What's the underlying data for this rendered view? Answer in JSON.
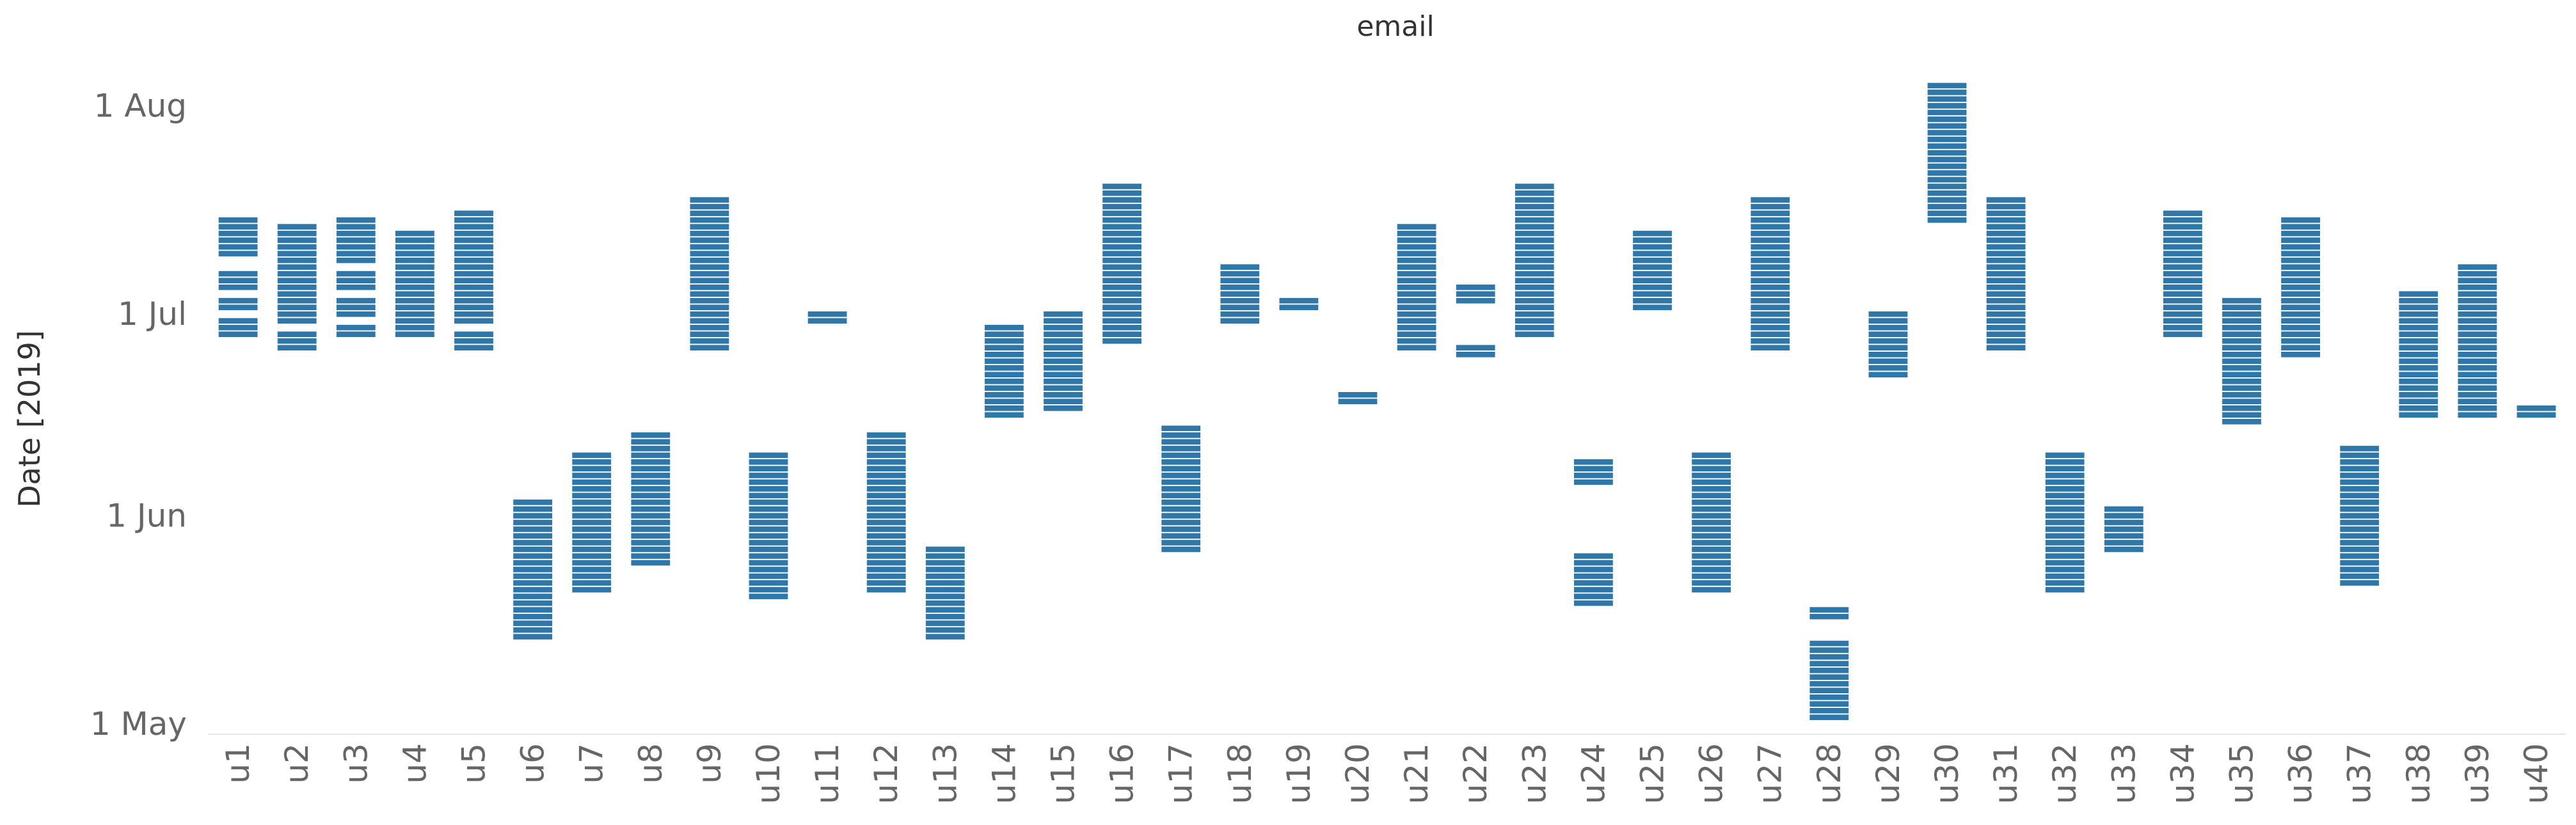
{
  "chart_data": {
    "type": "timeline-strip",
    "title": "email",
    "ylabel": "Date [2019]",
    "xlabel": "",
    "y_ticks": [
      "1 Aug",
      "1 Jul",
      "1 Jun",
      "1 May"
    ],
    "y_tick_values": [
      92,
      61,
      31,
      0
    ],
    "ylim": [
      -1.5,
      96.8
    ],
    "bar_color": "#2e77a8",
    "grid": false,
    "categories": [
      "u1",
      "u2",
      "u3",
      "u4",
      "u5",
      "u6",
      "u7",
      "u8",
      "u9",
      "u10",
      "u11",
      "u12",
      "u13",
      "u14",
      "u15",
      "u16",
      "u17",
      "u18",
      "u19",
      "u20",
      "u21",
      "u22",
      "u23",
      "u24",
      "u25",
      "u26",
      "u27",
      "u28",
      "u29",
      "u30",
      "u31",
      "u32",
      "u33",
      "u34",
      "u35",
      "u36",
      "u37",
      "u38",
      "u39",
      "u40"
    ],
    "series": [
      {
        "category": "u1",
        "days": [
          58,
          59,
          60,
          62,
          63,
          65,
          66,
          67,
          70,
          71,
          72,
          73,
          74,
          75
        ]
      },
      {
        "category": "u2",
        "days": [
          56,
          57,
          58,
          60,
          61,
          62,
          63,
          64,
          65,
          66,
          67,
          68,
          69,
          70,
          71,
          72,
          73,
          74
        ]
      },
      {
        "category": "u3",
        "days": [
          58,
          59,
          61,
          62,
          63,
          65,
          66,
          67,
          69,
          70,
          71,
          72,
          73,
          74,
          75
        ]
      },
      {
        "category": "u4",
        "days": [
          58,
          59,
          60,
          61,
          62,
          63,
          64,
          65,
          66,
          67,
          68,
          69,
          70,
          71,
          72,
          73
        ]
      },
      {
        "category": "u5",
        "days": [
          56,
          57,
          58,
          60,
          61,
          62,
          63,
          64,
          65,
          66,
          67,
          68,
          69,
          70,
          71,
          72,
          73,
          74,
          75,
          76
        ]
      },
      {
        "category": "u6",
        "days": [
          13,
          14,
          15,
          16,
          17,
          18,
          19,
          20,
          21,
          22,
          23,
          24,
          25,
          26,
          27,
          28,
          29,
          30,
          31,
          32,
          33
        ]
      },
      {
        "category": "u7",
        "days": [
          20,
          21,
          22,
          23,
          24,
          25,
          26,
          27,
          28,
          29,
          30,
          31,
          32,
          33,
          34,
          35,
          36,
          37,
          38,
          39,
          40
        ]
      },
      {
        "category": "u8",
        "days": [
          24,
          25,
          26,
          27,
          28,
          29,
          30,
          31,
          32,
          33,
          34,
          35,
          36,
          37,
          38,
          39,
          40,
          41,
          42,
          43
        ]
      },
      {
        "category": "u9",
        "days": [
          56,
          57,
          58,
          59,
          60,
          61,
          62,
          63,
          64,
          65,
          66,
          67,
          68,
          69,
          70,
          71,
          72,
          73,
          74,
          75,
          76,
          77,
          78
        ]
      },
      {
        "category": "u10",
        "days": [
          19,
          20,
          21,
          22,
          23,
          24,
          25,
          26,
          27,
          28,
          29,
          30,
          31,
          32,
          33,
          34,
          35,
          36,
          37,
          38,
          39,
          40
        ]
      },
      {
        "category": "u11",
        "days": [
          60,
          61
        ]
      },
      {
        "category": "u12",
        "days": [
          20,
          21,
          22,
          23,
          24,
          25,
          26,
          27,
          28,
          29,
          30,
          31,
          32,
          33,
          34,
          35,
          36,
          37,
          38,
          39,
          40,
          41,
          42,
          43
        ]
      },
      {
        "category": "u13",
        "days": [
          13,
          14,
          15,
          16,
          17,
          18,
          19,
          20,
          21,
          22,
          23,
          24,
          25,
          26
        ]
      },
      {
        "category": "u14",
        "days": [
          46,
          47,
          48,
          49,
          50,
          51,
          52,
          53,
          54,
          55,
          56,
          57,
          58,
          59
        ]
      },
      {
        "category": "u15",
        "days": [
          47,
          48,
          49,
          50,
          51,
          52,
          53,
          54,
          55,
          56,
          57,
          58,
          59,
          60,
          61
        ]
      },
      {
        "category": "u16",
        "days": [
          57,
          58,
          59,
          60,
          61,
          62,
          63,
          64,
          65,
          66,
          67,
          68,
          69,
          70,
          71,
          72,
          73,
          74,
          75,
          76,
          77,
          78,
          79,
          80
        ]
      },
      {
        "category": "u17",
        "days": [
          26,
          27,
          28,
          29,
          30,
          31,
          32,
          33,
          34,
          35,
          36,
          37,
          38,
          39,
          40,
          41,
          42,
          43,
          44
        ]
      },
      {
        "category": "u18",
        "days": [
          60,
          61,
          62,
          63,
          64,
          65,
          66,
          67,
          68
        ]
      },
      {
        "category": "u19",
        "days": [
          62,
          63
        ]
      },
      {
        "category": "u20",
        "days": [
          48,
          49
        ]
      },
      {
        "category": "u21",
        "days": [
          56,
          57,
          58,
          59,
          60,
          61,
          62,
          63,
          64,
          65,
          66,
          67,
          68,
          69,
          70,
          71,
          72,
          73,
          74
        ]
      },
      {
        "category": "u22",
        "days": [
          55,
          56,
          63,
          64,
          65
        ]
      },
      {
        "category": "u23",
        "days": [
          58,
          59,
          60,
          61,
          62,
          63,
          64,
          65,
          66,
          67,
          68,
          69,
          70,
          71,
          72,
          73,
          74,
          75,
          76,
          77,
          78,
          79,
          80
        ]
      },
      {
        "category": "u24",
        "days": [
          18,
          19,
          20,
          21,
          22,
          23,
          24,
          25,
          36,
          37,
          38,
          39
        ]
      },
      {
        "category": "u25",
        "days": [
          62,
          63,
          64,
          65,
          66,
          67,
          68,
          69,
          70,
          71,
          72,
          73
        ]
      },
      {
        "category": "u26",
        "days": [
          20,
          21,
          22,
          23,
          24,
          25,
          26,
          27,
          28,
          29,
          30,
          31,
          32,
          33,
          34,
          35,
          36,
          37,
          38,
          39,
          40
        ]
      },
      {
        "category": "u27",
        "days": [
          56,
          57,
          58,
          59,
          60,
          61,
          62,
          63,
          64,
          65,
          66,
          67,
          68,
          69,
          70,
          71,
          72,
          73,
          74,
          75,
          76,
          77,
          78
        ]
      },
      {
        "category": "u28",
        "days": [
          1,
          2,
          3,
          4,
          5,
          6,
          7,
          8,
          9,
          10,
          11,
          12,
          16,
          17
        ]
      },
      {
        "category": "u29",
        "days": [
          52,
          53,
          54,
          55,
          56,
          57,
          58,
          59,
          60,
          61
        ]
      },
      {
        "category": "u30",
        "days": [
          75,
          76,
          77,
          78,
          79,
          80,
          81,
          82,
          83,
          84,
          85,
          86,
          87,
          88,
          89,
          90,
          91,
          92,
          93,
          94,
          95
        ]
      },
      {
        "category": "u31",
        "days": [
          56,
          57,
          58,
          59,
          60,
          61,
          62,
          63,
          64,
          65,
          66,
          67,
          68,
          69,
          70,
          71,
          72,
          73,
          74,
          75,
          76,
          77,
          78
        ]
      },
      {
        "category": "u32",
        "days": [
          20,
          21,
          22,
          23,
          24,
          25,
          26,
          27,
          28,
          29,
          30,
          31,
          32,
          33,
          34,
          35,
          36,
          37,
          38,
          39,
          40
        ]
      },
      {
        "category": "u33",
        "days": [
          26,
          27,
          28,
          29,
          30,
          31,
          32
        ]
      },
      {
        "category": "u34",
        "days": [
          58,
          59,
          60,
          61,
          62,
          63,
          64,
          65,
          66,
          67,
          68,
          69,
          70,
          71,
          72,
          73,
          74,
          75,
          76
        ]
      },
      {
        "category": "u35",
        "days": [
          45,
          46,
          47,
          48,
          49,
          50,
          51,
          52,
          53,
          54,
          55,
          56,
          57,
          58,
          59,
          60,
          61,
          62,
          63
        ]
      },
      {
        "category": "u36",
        "days": [
          55,
          56,
          57,
          58,
          59,
          60,
          61,
          62,
          63,
          64,
          65,
          66,
          67,
          68,
          69,
          70,
          71,
          72,
          73,
          74,
          75
        ]
      },
      {
        "category": "u37",
        "days": [
          21,
          22,
          23,
          24,
          25,
          26,
          27,
          28,
          29,
          30,
          31,
          32,
          33,
          34,
          35,
          36,
          37,
          38,
          39,
          40,
          41
        ]
      },
      {
        "category": "u38",
        "days": [
          46,
          47,
          48,
          49,
          50,
          51,
          52,
          53,
          54,
          55,
          56,
          57,
          58,
          59,
          60,
          61,
          62,
          63,
          64
        ]
      },
      {
        "category": "u39",
        "days": [
          46,
          47,
          48,
          49,
          50,
          51,
          52,
          53,
          54,
          55,
          56,
          57,
          58,
          59,
          60,
          61,
          62,
          63,
          64,
          65,
          66,
          67,
          68
        ]
      },
      {
        "category": "u40",
        "days": [
          46,
          47
        ]
      }
    ]
  }
}
